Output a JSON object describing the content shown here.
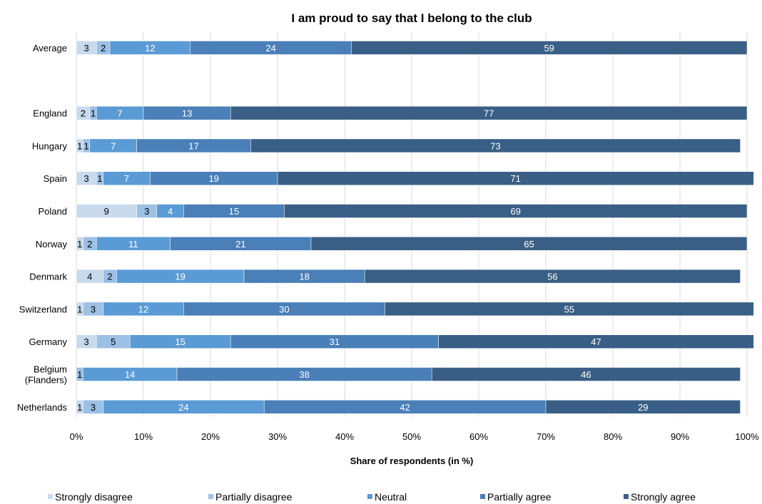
{
  "chart_data": {
    "type": "bar",
    "orientation": "horizontal",
    "stacked": true,
    "title": "I am proud to say that I belong to the club",
    "xlabel": "Share of respondents (in %)",
    "ylabel": "",
    "xlim": [
      0,
      100
    ],
    "x_ticks": [
      "0%",
      "10%",
      "20%",
      "30%",
      "40%",
      "50%",
      "60%",
      "70%",
      "80%",
      "90%",
      "100%"
    ],
    "grid": "vertical",
    "legend_position": "bottom",
    "categories": [
      [
        "Average"
      ],
      [
        ""
      ],
      [
        "England"
      ],
      [
        "Hungary"
      ],
      [
        "Spain"
      ],
      [
        "Poland"
      ],
      [
        "Norway"
      ],
      [
        "Denmark"
      ],
      [
        "Switzerland"
      ],
      [
        "Germany"
      ],
      [
        "Belgium",
        "(Flanders)"
      ],
      [
        "Netherlands"
      ]
    ],
    "series": [
      {
        "name": "Strongly disagree",
        "color": "#c9daed",
        "label_color": "#000000",
        "values": [
          3,
          null,
          2,
          1,
          3,
          9,
          1,
          4,
          1,
          3,
          0,
          1
        ]
      },
      {
        "name": "Partially disagree",
        "color": "#9dc0e5",
        "label_color": "#000000",
        "values": [
          2,
          null,
          1,
          1,
          1,
          3,
          2,
          2,
          3,
          5,
          1,
          3
        ]
      },
      {
        "name": "Neutral",
        "color": "#5b9bd5",
        "label_color": "#ffffff",
        "values": [
          12,
          null,
          7,
          7,
          7,
          4,
          11,
          19,
          12,
          15,
          14,
          24
        ]
      },
      {
        "name": "Partially agree",
        "color": "#4a7fb8",
        "label_color": "#ffffff",
        "values": [
          24,
          null,
          13,
          17,
          19,
          15,
          21,
          18,
          30,
          31,
          38,
          42
        ]
      },
      {
        "name": "Strongly agree",
        "color": "#3a5f86",
        "label_color": "#ffffff",
        "values": [
          59,
          null,
          77,
          73,
          71,
          69,
          65,
          56,
          55,
          47,
          46,
          29
        ]
      }
    ]
  }
}
